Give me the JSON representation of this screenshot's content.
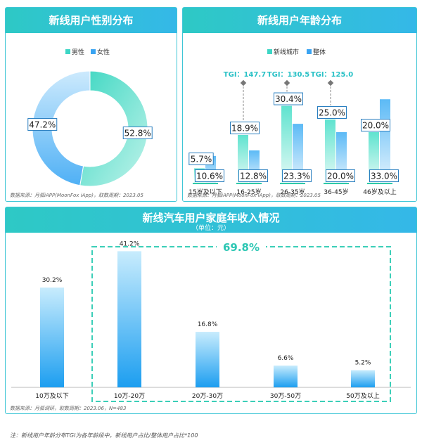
{
  "gender_panel": {
    "title": "新线用户性别分布",
    "source": "数据来源：月狐iAPP(MoonFox iApp)，取数周期：2023.05"
  },
  "age_panel": {
    "title": "新线用户年龄分布",
    "source": "数据来源：月狐iAPP(MoonFox iApp)，取数周期：2023.05"
  },
  "income_panel": {
    "title": "新线汽车用户家庭年收入情况",
    "unit": "（单位：元）",
    "source": "数据来源：月狐调研，取数周期：2023.06，N=483"
  },
  "footnote": "注：新线用户年龄分布TGI为各年龄段中，新线用户占比/整体用户占比*100",
  "colors": {
    "teal": "#3dd6c5",
    "blue": "#3aa4f2",
    "header_start": "#2ec9c5",
    "header_end": "#34b8e8",
    "dashed": "#3ccfb8"
  },
  "chart_data": [
    {
      "type": "pie",
      "legend": [
        "男性",
        "女性"
      ],
      "legend_position": "top-center",
      "slices": [
        {
          "name": "男性",
          "value": 52.8,
          "label": "52.8%"
        },
        {
          "name": "女性",
          "value": 47.2,
          "label": "47.2%"
        }
      ]
    },
    {
      "type": "bar",
      "categories": [
        "15岁及以下",
        "16-25岁",
        "26-35岁",
        "36-45岁",
        "46岁及以上"
      ],
      "legend": [
        "新线城市",
        "整体"
      ],
      "legend_position": "top-center",
      "series": [
        {
          "name": "新线城市",
          "values": [
            5.7,
            18.9,
            30.4,
            25.0,
            20.0
          ],
          "labels": [
            "5.7%",
            "18.9%",
            "30.4%",
            "25.0%",
            "20.0%"
          ]
        },
        {
          "name": "整体",
          "values": [
            10.6,
            12.8,
            23.3,
            20.0,
            33.0
          ],
          "labels": [
            "10.6%",
            "12.8%",
            "23.3%",
            "20.0%",
            "33.0%"
          ]
        }
      ],
      "tgi": [
        {
          "category": "16-25岁",
          "label": "TGI：147.7"
        },
        {
          "category": "26-35岁",
          "label": "TGI：130.5"
        },
        {
          "category": "36-45岁",
          "label": "TGI：125.0"
        }
      ],
      "ylim": [
        0,
        40
      ]
    },
    {
      "type": "bar",
      "categories": [
        "10万及以下",
        "10万-20万",
        "20万-30万",
        "30万-50万",
        "50万及以上"
      ],
      "values": [
        30.2,
        41.2,
        16.8,
        6.6,
        5.2
      ],
      "labels": [
        "30.2%",
        "41.2%",
        "16.8%",
        "6.6%",
        "5.2%"
      ],
      "highlight": {
        "label": "69.8%",
        "categories": [
          "10万-20万",
          "20万-30万",
          "30万-50万",
          "50万及以上"
        ]
      },
      "ylim": [
        0,
        45
      ]
    }
  ]
}
